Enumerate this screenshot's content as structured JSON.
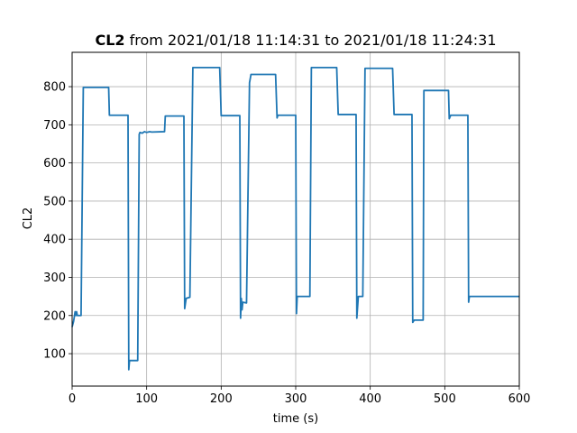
{
  "chart_data": {
    "type": "line",
    "title_bold": "CL2",
    "title_rest": "from 2021/01/18 11:14:31 to 2021/01/18 11:24:31",
    "xlabel": "time (s)",
    "ylabel": "CL2",
    "xlim": [
      0,
      600
    ],
    "ylim": [
      15,
      890
    ],
    "x_ticks": [
      0,
      100,
      200,
      300,
      400,
      500,
      600
    ],
    "y_ticks": [
      100,
      200,
      300,
      400,
      500,
      600,
      700,
      800
    ],
    "grid": true,
    "series_color": "#1f77b4",
    "series": [
      {
        "points": [
          [
            0,
            170
          ],
          [
            2,
            185
          ],
          [
            4,
            210
          ],
          [
            5,
            200
          ],
          [
            6,
            210
          ],
          [
            7,
            200
          ],
          [
            12,
            200
          ],
          [
            15,
            798
          ],
          [
            49,
            798
          ],
          [
            50,
            725
          ],
          [
            75,
            725
          ],
          [
            76,
            58
          ],
          [
            77,
            82
          ],
          [
            88,
            82
          ],
          [
            90,
            675
          ],
          [
            91,
            680
          ],
          [
            94,
            678
          ],
          [
            97,
            682
          ],
          [
            100,
            680
          ],
          [
            104,
            682
          ],
          [
            107,
            681
          ],
          [
            124,
            682
          ],
          [
            125,
            723
          ],
          [
            150,
            723
          ],
          [
            151,
            218
          ],
          [
            153,
            245
          ],
          [
            158,
            248
          ],
          [
            162,
            850
          ],
          [
            198,
            850
          ],
          [
            200,
            724
          ],
          [
            225,
            724
          ],
          [
            226,
            193
          ],
          [
            227,
            245
          ],
          [
            228,
            215
          ],
          [
            229,
            235
          ],
          [
            234,
            233
          ],
          [
            238,
            810
          ],
          [
            240,
            832
          ],
          [
            273,
            832
          ],
          [
            275,
            718
          ],
          [
            276,
            725
          ],
          [
            300,
            725
          ],
          [
            301,
            205
          ],
          [
            302,
            250
          ],
          [
            319,
            250
          ],
          [
            321,
            850
          ],
          [
            355,
            850
          ],
          [
            357,
            727
          ],
          [
            381,
            727
          ],
          [
            382,
            193
          ],
          [
            384,
            250
          ],
          [
            390,
            250
          ],
          [
            393,
            848
          ],
          [
            430,
            848
          ],
          [
            432,
            727
          ],
          [
            456,
            727
          ],
          [
            457,
            182
          ],
          [
            459,
            188
          ],
          [
            471,
            188
          ],
          [
            472,
            790
          ],
          [
            505,
            790
          ],
          [
            506,
            716
          ],
          [
            508,
            725
          ],
          [
            531,
            725
          ],
          [
            532,
            235
          ],
          [
            533,
            250
          ],
          [
            600,
            250
          ]
        ]
      }
    ]
  }
}
